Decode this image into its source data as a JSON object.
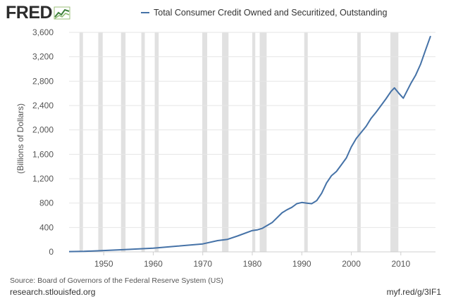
{
  "brand": {
    "name": "FRED",
    "logo_icon": "fred-chart-icon"
  },
  "footer": {
    "source": "Source: Board of Governors of the Federal Reserve System (US)",
    "site": "research.stlouisfed.org",
    "short_link": "myf.red/g/3IF1"
  },
  "colors": {
    "series": "#4572a7",
    "recession": "#e1e1e1",
    "grid": "#e6e6e6"
  },
  "chart_data": {
    "type": "line",
    "title": "",
    "xlabel": "",
    "ylabel": "(Billions of Dollars)",
    "xlim": [
      1943,
      2017
    ],
    "ylim": [
      0,
      3600
    ],
    "x_ticks": [
      1950,
      1960,
      1970,
      1980,
      1990,
      2000,
      2010
    ],
    "x_tick_labels": [
      "1950",
      "1960",
      "1970",
      "1980",
      "1990",
      "2000",
      "2010"
    ],
    "y_ticks": [
      0,
      400,
      800,
      1200,
      1600,
      2000,
      2400,
      2800,
      3200,
      3600
    ],
    "y_tick_labels": [
      "0",
      "400",
      "800",
      "1,200",
      "1,600",
      "2,000",
      "2,400",
      "2,800",
      "3,200",
      "3,600"
    ],
    "grid": true,
    "legend": "top",
    "recessions": [
      [
        1945.1,
        1945.8
      ],
      [
        1948.9,
        1949.8
      ],
      [
        1953.5,
        1954.4
      ],
      [
        1957.6,
        1958.3
      ],
      [
        1960.3,
        1961.1
      ],
      [
        1969.9,
        1970.9
      ],
      [
        1973.9,
        1975.2
      ],
      [
        1980.0,
        1980.6
      ],
      [
        1981.5,
        1982.9
      ],
      [
        1990.5,
        1991.2
      ],
      [
        2001.2,
        2001.9
      ],
      [
        2007.9,
        2009.5
      ]
    ],
    "series": [
      {
        "name": "Total Consumer Credit Owned and Securitized, Outstanding",
        "x": [
          1943,
          1946,
          1950,
          1955,
          1960,
          1965,
          1970,
          1973,
          1975,
          1977,
          1980,
          1981,
          1982,
          1984,
          1986,
          1987,
          1988,
          1989,
          1990,
          1991,
          1992,
          1993,
          1994,
          1995,
          1996,
          1997,
          1998,
          1999,
          2000,
          2001,
          2002,
          2003,
          2004,
          2005,
          2006,
          2007,
          2008,
          2008.7,
          2009.5,
          2010.5,
          2011.5,
          2012,
          2013,
          2014,
          2015,
          2016
        ],
        "values": [
          5,
          8,
          22,
          40,
          60,
          95,
          130,
          185,
          205,
          260,
          350,
          360,
          385,
          480,
          640,
          690,
          730,
          790,
          810,
          800,
          790,
          840,
          960,
          1130,
          1250,
          1320,
          1430,
          1540,
          1720,
          1860,
          1960,
          2060,
          2190,
          2290,
          2400,
          2510,
          2630,
          2690,
          2610,
          2520,
          2680,
          2760,
          2900,
          3080,
          3310,
          3540
        ]
      }
    ]
  }
}
